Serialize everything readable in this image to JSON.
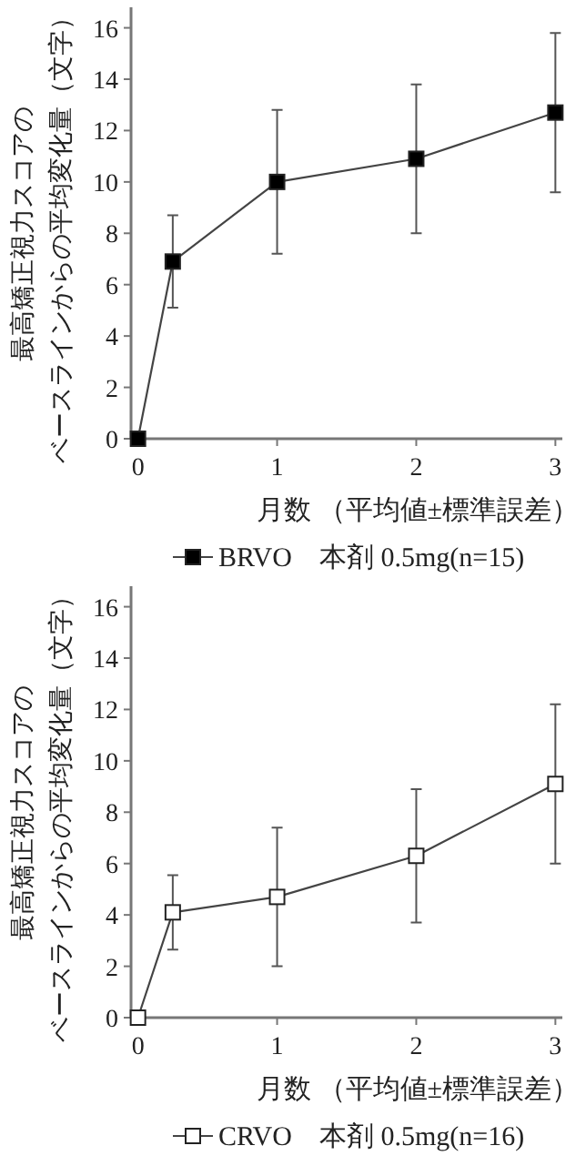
{
  "chart_data": [
    {
      "type": "line",
      "xlabel": "月数",
      "ylabel": "最高矯正視力スコアのベースラインからの平均変化量（文字）",
      "annotations": [
        "（平均値±標準誤差）"
      ],
      "x": [
        0,
        0.25,
        1,
        2,
        3
      ],
      "xlim": [
        -0.05,
        3.05
      ],
      "xticks": [
        0,
        1,
        2,
        3
      ],
      "ylim": [
        0,
        16.8
      ],
      "yticks": [
        0,
        2,
        4,
        6,
        8,
        10,
        12,
        14,
        16
      ],
      "marker": "square",
      "legend": "bottom",
      "grid": false,
      "series": [
        {
          "name": "BRVO　本剤 0.5mg(n=15)",
          "color": "#000000",
          "values": [
            0,
            6.9,
            10.0,
            10.9,
            12.7
          ],
          "errors": [
            null,
            1.8,
            2.8,
            2.9,
            3.1
          ]
        }
      ]
    },
    {
      "type": "line",
      "xlabel": "月数",
      "ylabel": "最高矯正視力スコアのベースラインからの平均変化量（文字）",
      "annotations": [
        "（平均値±標準誤差）"
      ],
      "x": [
        0,
        0.25,
        1,
        2,
        3
      ],
      "xlim": [
        -0.05,
        3.05
      ],
      "xticks": [
        0,
        1,
        2,
        3
      ],
      "ylim": [
        0,
        16.8
      ],
      "yticks": [
        0,
        2,
        4,
        6,
        8,
        10,
        12,
        14,
        16
      ],
      "marker": "square",
      "legend": "bottom",
      "grid": false,
      "series": [
        {
          "name": "CRVO　本剤 0.5mg(n=16)",
          "color": "#ffffff",
          "values": [
            0,
            4.1,
            4.7,
            6.3,
            9.1
          ],
          "errors": [
            null,
            1.45,
            2.7,
            2.6,
            3.1
          ]
        }
      ]
    }
  ]
}
